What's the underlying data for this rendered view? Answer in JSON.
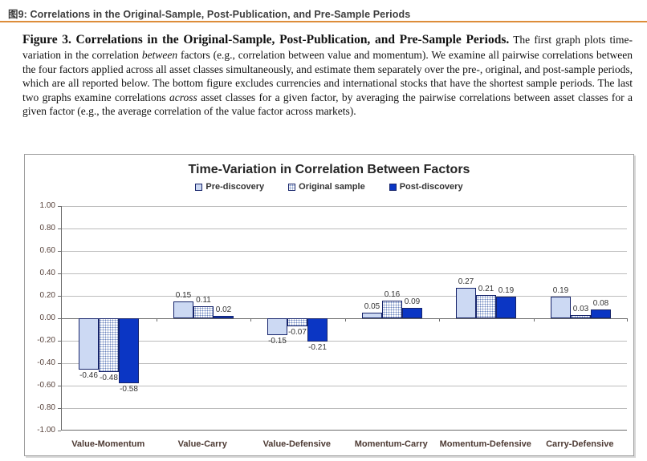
{
  "header": {
    "prefix": "图9:",
    "title": "Correlations in the Original-Sample, Post-Publication, and Pre-Sample Periods",
    "accent_color": "#dd8d3a"
  },
  "caption": {
    "title": "Figure 3. Correlations in the Original-Sample, Post-Publication, and Pre-Sample Periods.",
    "body_segments": [
      {
        "text": "The first graph plots time-variation in the correlation ",
        "italic": false
      },
      {
        "text": "between",
        "italic": true
      },
      {
        "text": " factors (e.g., correlation between value and momentum). We examine all pairwise correlations between the four factors applied across all asset classes simultaneously, and estimate them separately over the pre-, original, and post-sample periods, which are all reported below. The bottom figure excludes currencies and international stocks that have the shortest sample periods. The last two graphs examine correlations ",
        "italic": false
      },
      {
        "text": "across",
        "italic": true
      },
      {
        "text": " asset classes for a given factor, by averaging the pairwise correlations between asset classes for a given factor (e.g., the average correlation of the value factor across markets).",
        "italic": false
      }
    ]
  },
  "chart_data": {
    "type": "bar",
    "title": "Time-Variation in Correlation Between Factors",
    "categories": [
      "Value-Momentum",
      "Value-Carry",
      "Value-Defensive",
      "Momentum-Carry",
      "Momentum-Defensive",
      "Carry-Defensive"
    ],
    "series": [
      {
        "name": "Pre-discovery",
        "style": "light",
        "values": [
          -0.46,
          0.15,
          -0.15,
          0.05,
          0.27,
          0.19
        ]
      },
      {
        "name": "Original sample",
        "style": "dotted",
        "values": [
          -0.48,
          0.11,
          -0.07,
          0.16,
          0.21,
          0.03
        ]
      },
      {
        "name": "Post-discovery",
        "style": "solid",
        "values": [
          -0.58,
          0.02,
          -0.21,
          0.09,
          0.19,
          0.08
        ]
      }
    ],
    "ylim": [
      -1.0,
      1.0
    ],
    "ytick_step": 0.2,
    "yticks": [
      "1.00",
      "0.80",
      "0.60",
      "0.40",
      "0.20",
      "0.00",
      "-0.20",
      "-0.40",
      "-0.60",
      "-0.80",
      "-1.00"
    ],
    "grid": true,
    "legend_position": "top",
    "colors": {
      "pre_fill": "#ccd9f3",
      "post_fill": "#0b36c4",
      "bar_border": "#16246b",
      "gridline": "#bcbcbc",
      "axis": "#6a6a6a"
    }
  }
}
